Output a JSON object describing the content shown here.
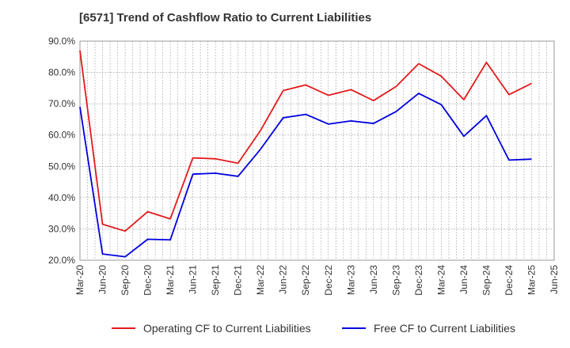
{
  "chart_data": {
    "type": "line",
    "title": "[6571]  Trend of Cashflow Ratio to Current Liabilities",
    "xlabel": "",
    "ylabel": "",
    "ylim": [
      20,
      90
    ],
    "yticks": [
      "20.0%",
      "30.0%",
      "40.0%",
      "50.0%",
      "60.0%",
      "70.0%",
      "80.0%",
      "90.0%"
    ],
    "ytick_values": [
      20,
      30,
      40,
      50,
      60,
      70,
      80,
      90
    ],
    "xticks": [
      "Mar-20",
      "Jun-20",
      "Sep-20",
      "Dec-20",
      "Mar-21",
      "Jun-21",
      "Sep-21",
      "Dec-21",
      "Mar-22",
      "Jun-22",
      "Sep-22",
      "Dec-22",
      "Mar-23",
      "Jun-23",
      "Sep-23",
      "Dec-23",
      "Mar-24",
      "Jun-24",
      "Sep-24",
      "Dec-24",
      "Mar-25",
      "Jun-25"
    ],
    "grid": true,
    "legend_position": "bottom",
    "series": [
      {
        "name": "Operating CF to Current Liabilities",
        "color": "#e31a1c",
        "points": [
          [
            0,
            87
          ],
          [
            1,
            31.5
          ],
          [
            2,
            29.3
          ],
          [
            3,
            35.5
          ],
          [
            4,
            33.2
          ],
          [
            5,
            52.7
          ],
          [
            6,
            52.4
          ],
          [
            7,
            51.0
          ],
          [
            8,
            61.5
          ],
          [
            9,
            74.2
          ],
          [
            10,
            76.0
          ],
          [
            11,
            72.7
          ],
          [
            12,
            74.5
          ],
          [
            13,
            71.0
          ],
          [
            14,
            75.5
          ],
          [
            15,
            82.8
          ],
          [
            16,
            78.8
          ],
          [
            17,
            71.3
          ],
          [
            18,
            83.2
          ],
          [
            19,
            72.9
          ],
          [
            20,
            76.5
          ]
        ]
      },
      {
        "name": "Free CF to Current Liabilities",
        "color": "#0000e0",
        "points": [
          [
            0,
            69
          ],
          [
            1,
            22.0
          ],
          [
            2,
            21.1
          ],
          [
            3,
            26.7
          ],
          [
            4,
            26.5
          ],
          [
            5,
            47.5
          ],
          [
            6,
            47.8
          ],
          [
            7,
            46.8
          ],
          [
            8,
            55.5
          ],
          [
            9,
            65.5
          ],
          [
            10,
            66.6
          ],
          [
            11,
            63.5
          ],
          [
            12,
            64.5
          ],
          [
            13,
            63.7
          ],
          [
            14,
            67.5
          ],
          [
            15,
            73.3
          ],
          [
            16,
            69.7
          ],
          [
            17,
            59.6
          ],
          [
            18,
            66.2
          ],
          [
            19,
            52.0
          ],
          [
            20,
            52.3
          ]
        ]
      }
    ]
  }
}
